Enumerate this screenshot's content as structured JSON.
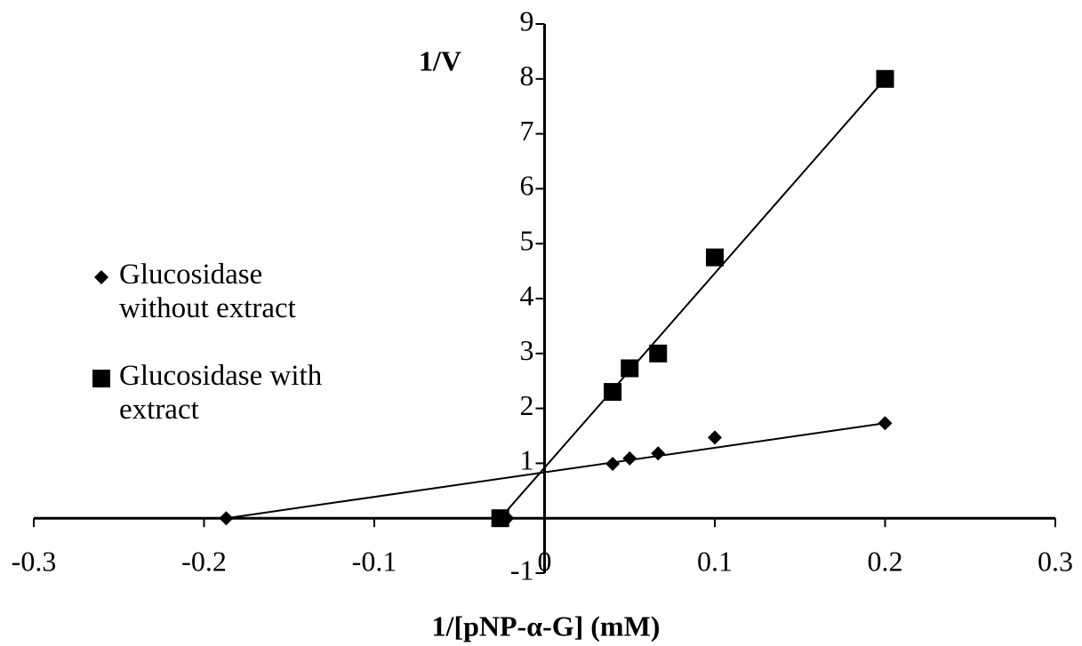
{
  "chart_data": {
    "type": "scatter",
    "y_label": "1/V",
    "x_label": "1/[pNP-α-G] (mM)",
    "xlim": [
      -0.3,
      0.3
    ],
    "xticks": [
      -0.3,
      -0.2,
      -0.1,
      0,
      0.1,
      0.2,
      0.3
    ],
    "ylim": [
      -1,
      9
    ],
    "yticks": [
      -1,
      1,
      2,
      3,
      4,
      5,
      6,
      7,
      8,
      9
    ],
    "trendline": true,
    "series": [
      {
        "name": "Glucosidase without extract",
        "marker": "diamond",
        "color": "#000000",
        "x": [
          -0.187,
          -0.022,
          0.04,
          0.05,
          0.0667,
          0.1,
          0.2
        ],
        "values": [
          0,
          0,
          0.99,
          1.09,
          1.18,
          1.47,
          1.73
        ]
      },
      {
        "name": "Glucosidase with extract",
        "marker": "square",
        "color": "#000000",
        "x": [
          -0.026,
          0.04,
          0.05,
          0.0667,
          0.1,
          0.2
        ],
        "values": [
          0,
          2.3,
          2.73,
          3.0,
          4.75,
          8.0
        ]
      }
    ]
  }
}
